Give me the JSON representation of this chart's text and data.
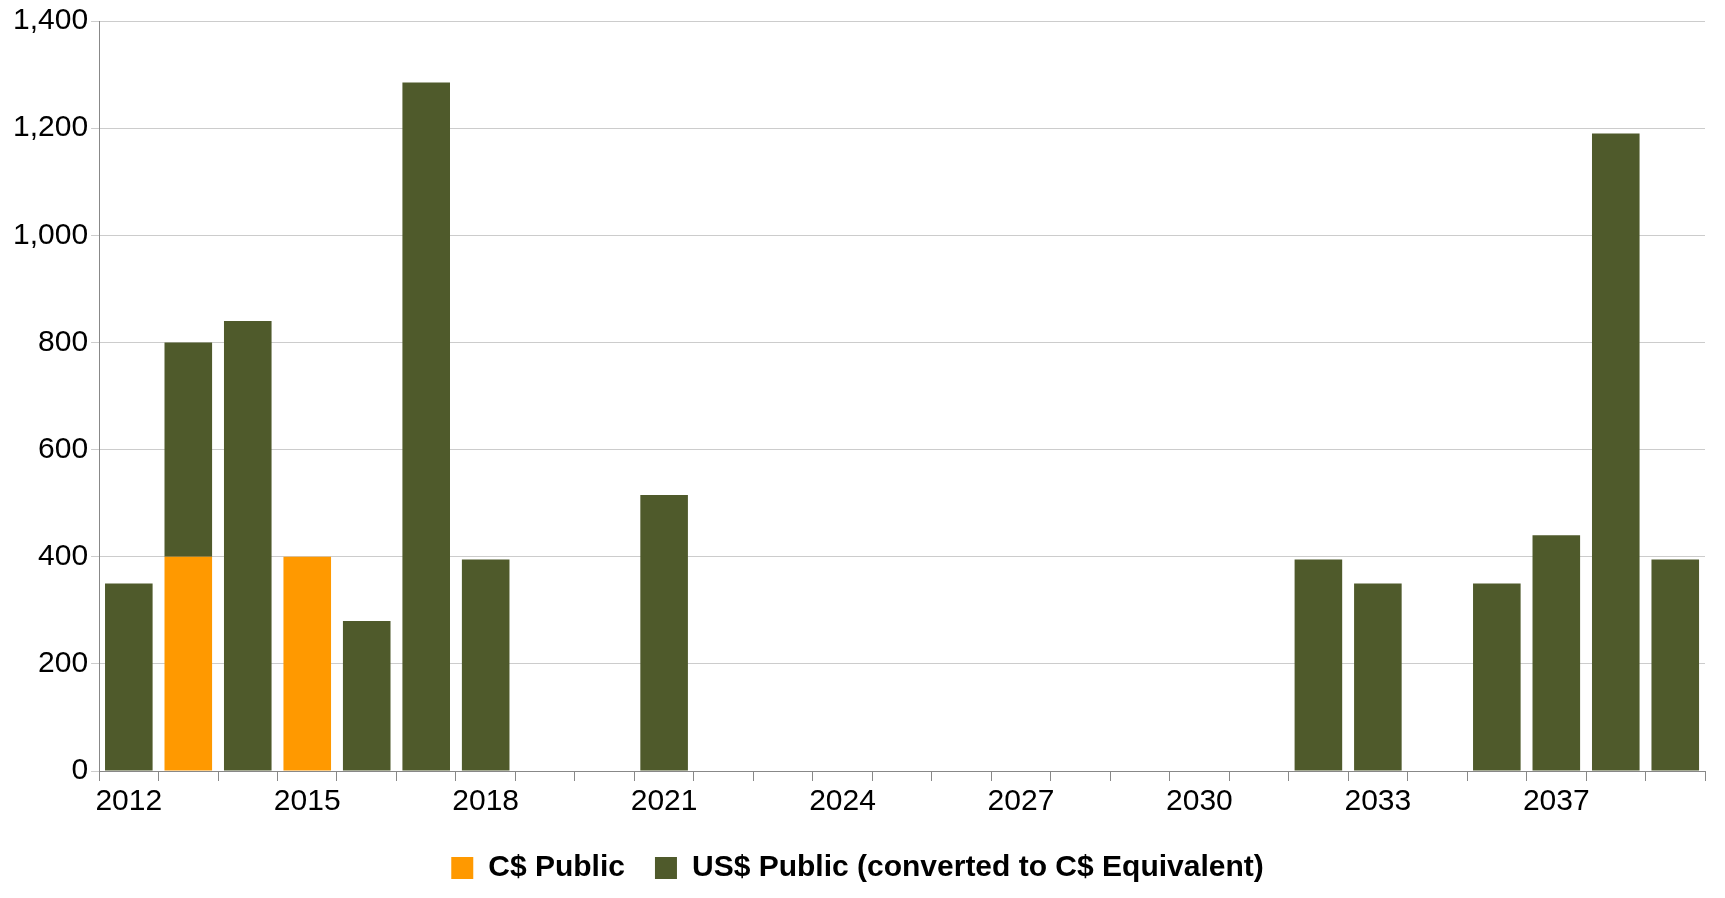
{
  "chart_data": {
    "type": "bar",
    "stacked": true,
    "categories": [
      "2012",
      null,
      null,
      "2015",
      null,
      null,
      "2018",
      null,
      null,
      "2021",
      null,
      null,
      "2024",
      null,
      null,
      "2027",
      null,
      null,
      "2030",
      null,
      null,
      "2033",
      null,
      null,
      "2037",
      null,
      null
    ],
    "series": [
      {
        "name": "C$ Public",
        "color": "#ff9900",
        "values": [
          null,
          400,
          null,
          400,
          null,
          null,
          null,
          null,
          null,
          null,
          null,
          null,
          null,
          null,
          null,
          null,
          null,
          null,
          null,
          null,
          null,
          null,
          null,
          null,
          null,
          null,
          null
        ]
      },
      {
        "name": "US$ Public (converted to C$ Equivalent)",
        "color": "#4f5a2b",
        "values": [
          350,
          400,
          840,
          null,
          280,
          1285,
          395,
          null,
          null,
          515,
          null,
          null,
          null,
          null,
          null,
          null,
          null,
          null,
          null,
          null,
          395,
          350,
          null,
          350,
          440,
          1190,
          395
        ]
      }
    ],
    "ylim": [
      0,
      1400
    ],
    "yticks": [
      0,
      200,
      400,
      600,
      800,
      {
        "value": 1000,
        "label": "1,000"
      },
      {
        "value": 1200,
        "label": "1,200"
      },
      {
        "value": 1400,
        "label": "1,400"
      }
    ],
    "grid": "y",
    "legend": "bottom"
  }
}
